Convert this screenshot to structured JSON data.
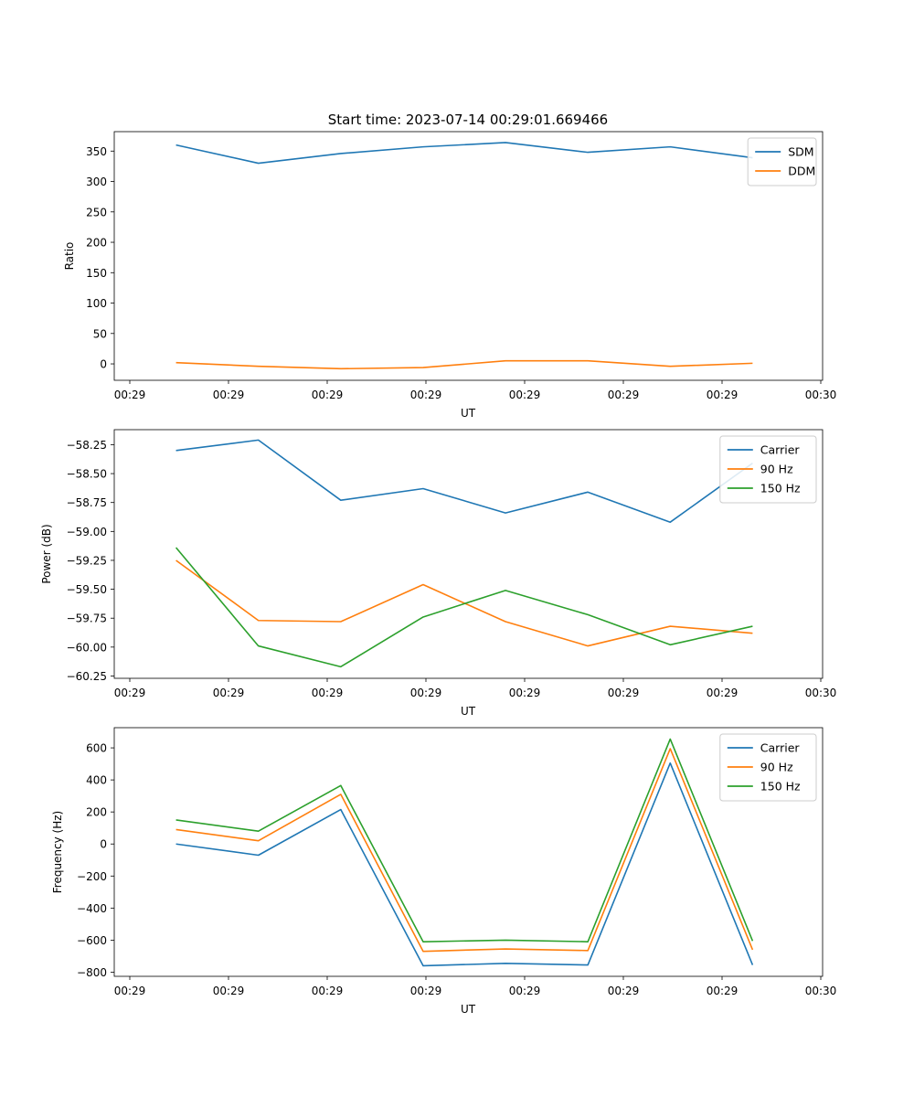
{
  "figure_title": "Start time: 2023-07-14 00:29:01.669466",
  "colors": {
    "blue": "#1f77b4",
    "orange": "#ff7f0e",
    "green": "#2ca02c"
  },
  "chart_data": [
    {
      "type": "line",
      "title": "Start time: 2023-07-14 00:29:01.669466",
      "xlabel": "UT",
      "ylabel": "Ratio",
      "x_tick_labels": [
        "00:29",
        "00:29",
        "00:29",
        "00:29",
        "00:29",
        "00:29",
        "00:29",
        "00:30"
      ],
      "y_ticks": [
        0,
        50,
        100,
        150,
        200,
        250,
        300,
        350
      ],
      "y_tick_labels": [
        "0",
        "50",
        "100",
        "150",
        "200",
        "250",
        "300",
        "350"
      ],
      "ylim": [
        -27,
        382
      ],
      "x": [
        1,
        2,
        3,
        4,
        5,
        6,
        7,
        8
      ],
      "series": [
        {
          "name": "SDM",
          "color": "#1f77b4",
          "values": [
            360,
            330,
            346,
            357,
            364,
            348,
            357,
            339
          ]
        },
        {
          "name": "DDM",
          "color": "#ff7f0e",
          "values": [
            2,
            -4,
            -8,
            -6,
            5,
            5,
            -4,
            1
          ]
        }
      ],
      "legend": "top-right"
    },
    {
      "type": "line",
      "title": "",
      "xlabel": "UT",
      "ylabel": "Power (dB)",
      "x_tick_labels": [
        "00:29",
        "00:29",
        "00:29",
        "00:29",
        "00:29",
        "00:29",
        "00:29",
        "00:30"
      ],
      "y_ticks": [
        -58.25,
        -58.5,
        -58.75,
        -59.0,
        -59.25,
        -59.5,
        -59.75,
        -60.0,
        -60.25
      ],
      "y_tick_labels": [
        "−58.25",
        "−58.50",
        "−58.75",
        "−59.00",
        "−59.25",
        "−59.50",
        "−59.75",
        "−60.00",
        "−60.25"
      ],
      "ylim": [
        -60.27,
        -58.12
      ],
      "x": [
        1,
        2,
        3,
        4,
        5,
        6,
        7,
        8
      ],
      "series": [
        {
          "name": "Carrier",
          "color": "#1f77b4",
          "values": [
            -58.3,
            -58.21,
            -58.73,
            -58.63,
            -58.84,
            -58.66,
            -58.92,
            -58.41
          ]
        },
        {
          "name": "90 Hz",
          "color": "#ff7f0e",
          "values": [
            -59.25,
            -59.77,
            -59.78,
            -59.46,
            -59.78,
            -59.99,
            -59.82,
            -59.88
          ]
        },
        {
          "name": "150 Hz",
          "color": "#2ca02c",
          "values": [
            -59.14,
            -59.99,
            -60.17,
            -59.74,
            -59.51,
            -59.72,
            -59.98,
            -59.82
          ]
        }
      ],
      "legend": "top-right"
    },
    {
      "type": "line",
      "title": "",
      "xlabel": "UT",
      "ylabel": "Frequency (Hz)",
      "x_tick_labels": [
        "00:29",
        "00:29",
        "00:29",
        "00:29",
        "00:29",
        "00:29",
        "00:29",
        "00:30"
      ],
      "y_ticks": [
        600,
        400,
        200,
        0,
        -200,
        -400,
        -600,
        -800
      ],
      "y_tick_labels": [
        "600",
        "400",
        "200",
        "0",
        "−200",
        "−400",
        "−600",
        "−800"
      ],
      "ylim": [
        -826,
        726
      ],
      "x": [
        1,
        2,
        3,
        4,
        5,
        6,
        7,
        8
      ],
      "series": [
        {
          "name": "Carrier",
          "color": "#1f77b4",
          "values": [
            0,
            -70,
            215,
            -760,
            -745,
            -755,
            505,
            -755
          ]
        },
        {
          "name": "90 Hz",
          "color": "#ff7f0e",
          "values": [
            90,
            20,
            310,
            -670,
            -655,
            -665,
            595,
            -660
          ]
        },
        {
          "name": "150 Hz",
          "color": "#2ca02c",
          "values": [
            150,
            80,
            365,
            -610,
            -600,
            -610,
            655,
            -605
          ]
        }
      ],
      "legend": "top-right"
    }
  ]
}
